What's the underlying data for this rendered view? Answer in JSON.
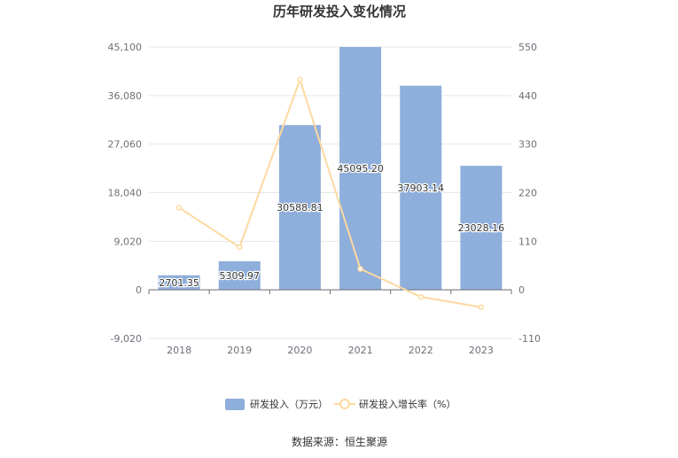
{
  "chart_data": {
    "type": "bar",
    "title": "历年研发投入变化情况",
    "categories": [
      "2018",
      "2019",
      "2020",
      "2021",
      "2022",
      "2023"
    ],
    "series": [
      {
        "name": "研发投入（万元）",
        "type": "bar",
        "axis": "left",
        "values": [
          2701.35,
          5309.97,
          30588.81,
          45095.2,
          37903.14,
          23028.16
        ],
        "labels": [
          "2701.35",
          "5309.97",
          "30588.81",
          "45095.20",
          "37903.14",
          "23028.16"
        ],
        "color": "#8eaedb"
      },
      {
        "name": "研发投入增长率（%）",
        "type": "line",
        "axis": "right",
        "values": [
          186,
          96.6,
          476,
          47.4,
          -16,
          -39.2
        ],
        "color": "#fdd9a0"
      }
    ],
    "y_left": {
      "ylim": [
        -9020,
        45100
      ],
      "ticks": [
        "45,100",
        "36,080",
        "27,060",
        "18,040",
        "9,020",
        "0",
        "-9,020"
      ]
    },
    "y_right": {
      "ylim": [
        -110,
        550
      ],
      "ticks": [
        "550",
        "440",
        "330",
        "220",
        "110",
        "0",
        "-110"
      ]
    },
    "grid": true,
    "legend": "bottom-center"
  },
  "source_text": "数据来源：恒生聚源"
}
